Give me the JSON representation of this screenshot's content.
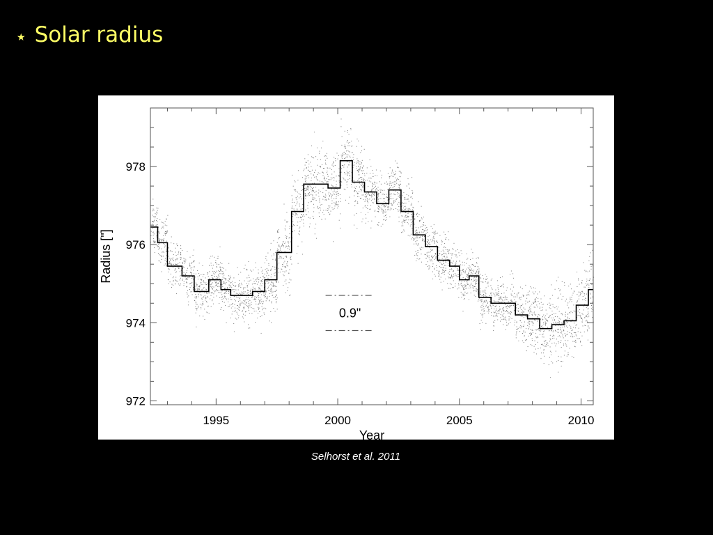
{
  "slide": {
    "bullet_icon": "star-bullet-icon",
    "bullet_glyph": "★",
    "title": "Solar radius",
    "title_color": "#ffff66",
    "background": "#000000"
  },
  "caption": "Selhorst et al. 2011",
  "chart_data": {
    "type": "line",
    "style": "step line over scatter points",
    "title": "",
    "xlabel": "Year",
    "ylabel": "Radius [\"]",
    "xlim": [
      1992.3,
      2010.5
    ],
    "ylim": [
      971.9,
      979.5
    ],
    "x_ticks": [
      1995,
      2000,
      2005,
      2010
    ],
    "x_tick_labels": [
      "1995",
      "2000",
      "2005",
      "2010"
    ],
    "y_ticks": [
      972,
      974,
      976,
      978
    ],
    "y_tick_labels": [
      "972",
      "974",
      "976",
      "978"
    ],
    "grid": false,
    "legend": "none",
    "series": [
      {
        "kind": "step",
        "x_edges": [
          1992.3,
          1992.6,
          1993.0,
          1993.6,
          1994.1,
          1994.7,
          1995.2,
          1995.6,
          1995.9,
          1996.5,
          1997.0,
          1997.5,
          1998.1,
          1998.6,
          1999.1,
          1999.6,
          2000.1,
          2000.6,
          2001.1,
          2001.6,
          2002.1,
          2002.6,
          2003.1,
          2003.6,
          2004.1,
          2004.6,
          2005.0,
          2005.4,
          2005.8,
          2006.3,
          2006.8,
          2007.3,
          2007.8,
          2008.3,
          2008.8,
          2009.3,
          2009.8,
          2010.3,
          2010.5
        ],
        "values": [
          976.45,
          976.05,
          975.45,
          975.2,
          974.8,
          975.1,
          974.85,
          974.7,
          974.7,
          974.8,
          975.1,
          975.8,
          976.85,
          977.55,
          977.55,
          977.45,
          978.15,
          977.6,
          977.35,
          977.05,
          977.4,
          976.85,
          976.25,
          975.95,
          975.6,
          975.45,
          975.1,
          975.2,
          974.65,
          974.5,
          974.5,
          974.2,
          974.1,
          973.85,
          973.95,
          974.05,
          974.45,
          974.85
        ]
      }
    ],
    "scatter_points": "dense daily measurements (~thousands) scattered around the step curve",
    "annotation": {
      "label": "0.9\"",
      "x_range": [
        1999.5,
        2001.5
      ],
      "y_upper": 974.7,
      "y_lower": 973.8
    }
  }
}
